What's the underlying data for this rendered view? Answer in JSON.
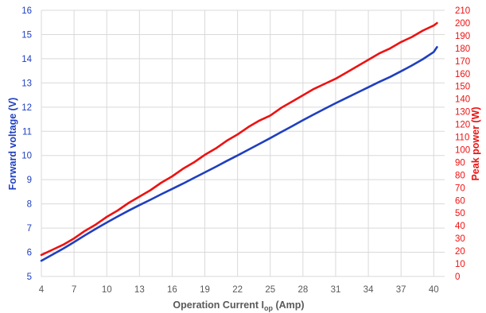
{
  "chart_data": {
    "type": "line",
    "title": "",
    "xlabel": {
      "main": "Operation Current I",
      "sub": "op",
      "unit": " (Amp)"
    },
    "ylabel_left": "Forward voltage (V)",
    "ylabel_right": "Peak power (W)",
    "xlim": [
      4,
      41
    ],
    "ylim_left": [
      5,
      16
    ],
    "ylim_right": [
      0,
      210
    ],
    "x_ticks": [
      4,
      7,
      10,
      13,
      16,
      19,
      22,
      25,
      28,
      31,
      34,
      37,
      40
    ],
    "y_left_ticks": [
      5,
      6,
      7,
      8,
      9,
      10,
      11,
      12,
      13,
      14,
      15,
      16
    ],
    "y_right_ticks": [
      0,
      10,
      20,
      30,
      40,
      50,
      60,
      70,
      80,
      90,
      100,
      110,
      120,
      130,
      140,
      150,
      160,
      170,
      180,
      190,
      200,
      210
    ],
    "grid": true,
    "legend": "none",
    "series": [
      {
        "axis": "left",
        "color": "#1f3fbf",
        "x": [
          4,
          5,
          6,
          7,
          8,
          9,
          10,
          11,
          12,
          13,
          14,
          15,
          16,
          17,
          18,
          19,
          20,
          21,
          22,
          23,
          24,
          25,
          26,
          27,
          28,
          29,
          30,
          31,
          32,
          33,
          34,
          35,
          36,
          37,
          38,
          39,
          40,
          40.3
        ],
        "values": [
          5.65,
          5.9,
          6.15,
          6.42,
          6.7,
          6.97,
          7.23,
          7.48,
          7.72,
          7.95,
          8.17,
          8.4,
          8.62,
          8.84,
          9.07,
          9.3,
          9.53,
          9.77,
          10.0,
          10.24,
          10.48,
          10.72,
          10.97,
          11.21,
          11.46,
          11.7,
          11.93,
          12.16,
          12.38,
          12.6,
          12.82,
          13.04,
          13.25,
          13.48,
          13.72,
          13.98,
          14.28,
          14.48
        ]
      },
      {
        "axis": "right",
        "color": "#ee1111",
        "x": [
          4,
          5,
          6,
          7,
          8,
          9,
          10,
          11,
          12,
          13,
          14,
          15,
          16,
          17,
          18,
          19,
          20,
          21,
          22,
          23,
          24,
          25,
          26,
          27,
          28,
          29,
          30,
          31,
          32,
          33,
          34,
          35,
          36,
          37,
          38,
          39,
          40,
          40.3
        ],
        "values": [
          17,
          21,
          25,
          30,
          36,
          41,
          47,
          52,
          58,
          63,
          68,
          74,
          79,
          85,
          90,
          96,
          101,
          107,
          112,
          118,
          123,
          127,
          133,
          138,
          143,
          148,
          152,
          156,
          161,
          166,
          171,
          176,
          180,
          185,
          189,
          194,
          198,
          200
        ]
      }
    ],
    "colors": {
      "left_axis_text": "#1f3fbf",
      "right_axis_text": "#ee1111",
      "x_axis_text": "#595959",
      "grid": "#d9d9d9"
    }
  }
}
